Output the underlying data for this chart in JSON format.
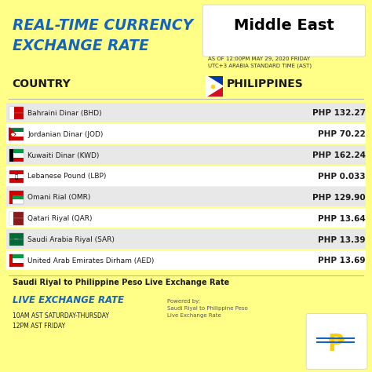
{
  "bg_color": "#FFFF88",
  "title_line1": "REAL-TIME CURRENCY",
  "title_line2": "EXCHANGE RATE",
  "title_color": "#1565C0",
  "region_title": "Middle East",
  "datetime_text": "AS OF 12:00PM MAY 29, 2020 FRIDAY\nUTC+3 ARABIA STANDARD TIME (AST)",
  "col1_header": "COUNTRY",
  "col2_header": "PHILIPPINES",
  "currencies": [
    "Bahraini Dinar (BHD)",
    "Jordanian Dinar (JOD)",
    "Kuwaiti Dinar (KWD)",
    "Lebanese Pound (LBP)",
    "Omani Rial (OMR)",
    "Qatari Riyal (QAR)",
    "Saudi Arabia Riyal (SAR)",
    "United Arab Emirates Dirham (AED)"
  ],
  "values": [
    "PHP 132.27",
    "PHP 70.22",
    "PHP 162.24",
    "PHP 0.033",
    "PHP 129.90",
    "PHP 13.64",
    "PHP 13.39",
    "PHP 13.69"
  ],
  "flag_colors_top": [
    "#CC0001",
    "#007A3D"
  ],
  "flag_colors_bottom": [
    "#FFFFFF",
    "#CC0001"
  ],
  "row_bg_colors": [
    "#E8E8E8",
    "#FFFFFF"
  ],
  "footer_title": "Saudi Riyal to Philippine Peso Live Exchange Rate",
  "live_text": "LIVE EXCHANGE RATE",
  "live_color": "#1565C0",
  "schedule_text": "10AM AST SATURDAY-THURSDAY\n12PM AST FRIDAY",
  "powered_text": "Powered by:\nSaudi Riyal to Philippine Peso\nLive Exchange Rate",
  "value_color": "#1a1a1a",
  "header_color": "#1a1a1a"
}
